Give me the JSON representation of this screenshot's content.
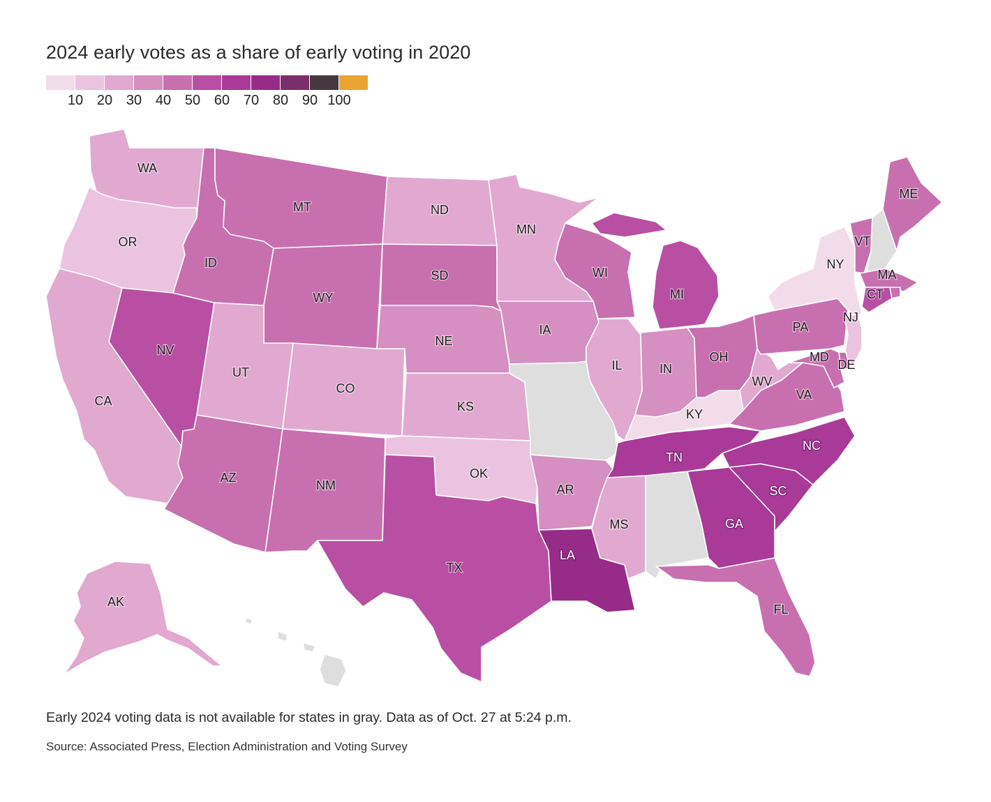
{
  "title": "2024 early votes as a share of early voting in 2020",
  "legend": {
    "colors": [
      "#f3dcea",
      "#ebc3df",
      "#e1a9cf",
      "#d58fc1",
      "#c86fb0",
      "#b84fa3",
      "#a93a97",
      "#962c87",
      "#7a2f6a",
      "#45393f",
      "#e8a531"
    ],
    "ticks": [
      "10",
      "20",
      "30",
      "40",
      "50",
      "60",
      "70",
      "80",
      "90",
      "100"
    ]
  },
  "map": {
    "no_data_color": "#dedede",
    "states": [
      {
        "abbr": "WA",
        "bin": 2
      },
      {
        "abbr": "OR",
        "bin": 1
      },
      {
        "abbr": "CA",
        "bin": 2
      },
      {
        "abbr": "NV",
        "bin": 5
      },
      {
        "abbr": "ID",
        "bin": 4
      },
      {
        "abbr": "MT",
        "bin": 4
      },
      {
        "abbr": "WY",
        "bin": 4
      },
      {
        "abbr": "UT",
        "bin": 2
      },
      {
        "abbr": "CO",
        "bin": 2
      },
      {
        "abbr": "AZ",
        "bin": 4
      },
      {
        "abbr": "NM",
        "bin": 4
      },
      {
        "abbr": "ND",
        "bin": 2
      },
      {
        "abbr": "SD",
        "bin": 4
      },
      {
        "abbr": "NE",
        "bin": 3
      },
      {
        "abbr": "KS",
        "bin": 2
      },
      {
        "abbr": "OK",
        "bin": 1
      },
      {
        "abbr": "TX",
        "bin": 5
      },
      {
        "abbr": "MN",
        "bin": 2
      },
      {
        "abbr": "IA",
        "bin": 3
      },
      {
        "abbr": "MO",
        "bin": -1
      },
      {
        "abbr": "AR",
        "bin": 3
      },
      {
        "abbr": "LA",
        "bin": 7
      },
      {
        "abbr": "WI",
        "bin": 4
      },
      {
        "abbr": "IL",
        "bin": 2
      },
      {
        "abbr": "MI",
        "bin": 5
      },
      {
        "abbr": "IN",
        "bin": 3
      },
      {
        "abbr": "OH",
        "bin": 4
      },
      {
        "abbr": "KY",
        "bin": 0
      },
      {
        "abbr": "TN",
        "bin": 6
      },
      {
        "abbr": "MS",
        "bin": 2
      },
      {
        "abbr": "AL",
        "bin": -1
      },
      {
        "abbr": "GA",
        "bin": 6
      },
      {
        "abbr": "FL",
        "bin": 4
      },
      {
        "abbr": "SC",
        "bin": 6
      },
      {
        "abbr": "NC",
        "bin": 6
      },
      {
        "abbr": "VA",
        "bin": 4
      },
      {
        "abbr": "WV",
        "bin": 2
      },
      {
        "abbr": "PA",
        "bin": 4
      },
      {
        "abbr": "NY",
        "bin": 0
      },
      {
        "abbr": "VT",
        "bin": 4
      },
      {
        "abbr": "NH",
        "bin": -1
      },
      {
        "abbr": "ME",
        "bin": 4
      },
      {
        "abbr": "MA",
        "bin": 4
      },
      {
        "abbr": "RI",
        "bin": 4
      },
      {
        "abbr": "CT",
        "bin": 5
      },
      {
        "abbr": "NJ",
        "bin": 1
      },
      {
        "abbr": "DE",
        "bin": 4
      },
      {
        "abbr": "MD",
        "bin": 4
      },
      {
        "abbr": "AK",
        "bin": 2
      },
      {
        "abbr": "HI",
        "bin": -1
      }
    ]
  },
  "note": "Early 2024 voting data is not available for states in gray. Data as of Oct. 27 at 5:24 p.m.",
  "source": "Source: Associated Press, Election Administration and Voting Survey"
}
